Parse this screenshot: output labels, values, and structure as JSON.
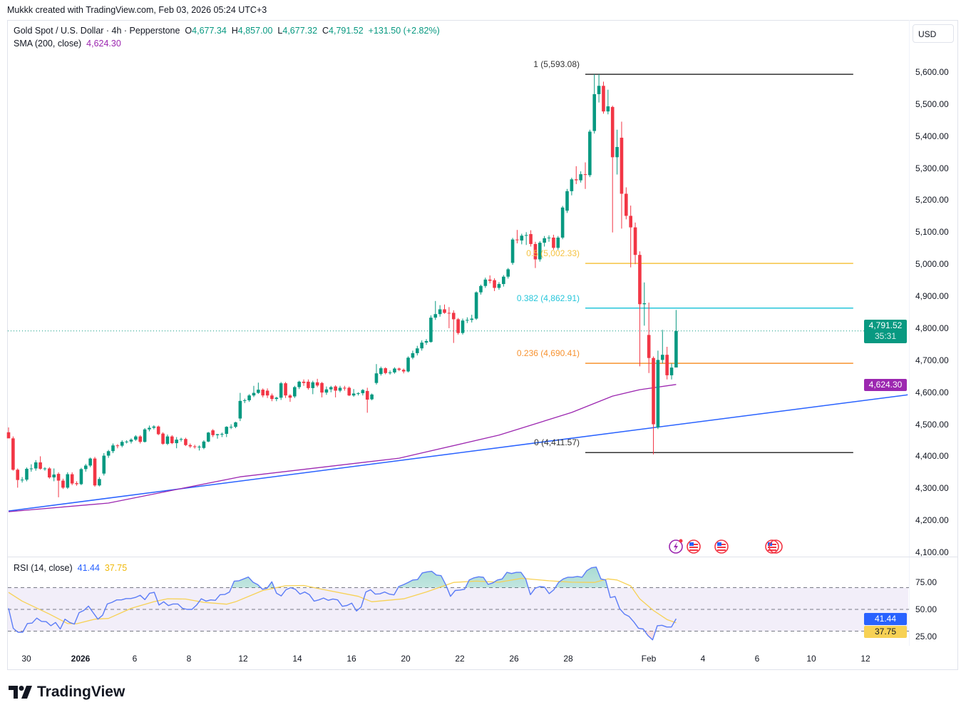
{
  "creator": "Mukkk created with TradingView.com, Feb 03, 2026 05:24 UTC+3",
  "legend": {
    "symbol": "Gold Spot / U.S. Dollar · 4h · Pepperstone",
    "o_label": "O",
    "o": "4,677.34",
    "h_label": "H",
    "h": "4,857.00",
    "l_label": "L",
    "l": "4,677.32",
    "c_label": "C",
    "c": "4,791.52",
    "change": "+131.50 (+2.82%)",
    "sma_label": "SMA (200, close)",
    "sma_value": "4,624.30"
  },
  "currency": "USD",
  "last_price": {
    "value": "4,791.52",
    "countdown": "35:31"
  },
  "sma_badge": "4,624.30",
  "rsi_legend": {
    "label": "RSI (14, close)",
    "value": "41.44",
    "ma_value": "37.75"
  },
  "rsi_badges": {
    "rsi": "41.44",
    "ma": "37.75"
  },
  "brand": "TradingView",
  "colors": {
    "up": "#089981",
    "down": "#f23645",
    "sma": "#9c27b0",
    "trend": "#2962ff",
    "rsi": "#5b7cf7",
    "rsi_ma": "#f7d154",
    "fib_1": "#333333",
    "fib_05": "#f5c342",
    "fib_0382": "#26c6da",
    "fib_0236": "#f7922f"
  },
  "events": [
    "lightning-event-icon",
    "us-flag-event-icon",
    "us-flag-event-icon",
    "us-flag-event-icon"
  ],
  "chart_data": {
    "type": "candlestick",
    "interval": "4h",
    "ylim": [
      4100,
      5650
    ],
    "price_ticks": [
      {
        "v": 5600,
        "t": "5,600.00"
      },
      {
        "v": 5500,
        "t": "5,500.00"
      },
      {
        "v": 5400,
        "t": "5,400.00"
      },
      {
        "v": 5300,
        "t": "5,300.00"
      },
      {
        "v": 5200,
        "t": "5,200.00"
      },
      {
        "v": 5100,
        "t": "5,100.00"
      },
      {
        "v": 5000,
        "t": "5,000.00"
      },
      {
        "v": 4900,
        "t": "4,900.00"
      },
      {
        "v": 4800,
        "t": "4,800.00"
      },
      {
        "v": 4700,
        "t": "4,700.00"
      },
      {
        "v": 4600,
        "t": "4,600.00"
      },
      {
        "v": 4500,
        "t": "4,500.00"
      },
      {
        "v": 4400,
        "t": "4,400.00"
      },
      {
        "v": 4300,
        "t": "4,300.00"
      },
      {
        "v": 4200,
        "t": "4,200.00"
      },
      {
        "v": 4100,
        "t": "4,100.00"
      }
    ],
    "time_ticks": [
      {
        "t": "30",
        "bold": false
      },
      {
        "t": "2026",
        "bold": true
      },
      {
        "t": "6",
        "bold": false
      },
      {
        "t": "8",
        "bold": false
      },
      {
        "t": "12",
        "bold": false
      },
      {
        "t": "14",
        "bold": false
      },
      {
        "t": "16",
        "bold": false
      },
      {
        "t": "20",
        "bold": false
      },
      {
        "t": "22",
        "bold": false
      },
      {
        "t": "26",
        "bold": false
      },
      {
        "t": "28",
        "bold": false
      },
      {
        "t": "Feb",
        "bold": false
      },
      {
        "t": "4",
        "bold": false
      },
      {
        "t": "6",
        "bold": false
      },
      {
        "t": "10",
        "bold": false
      },
      {
        "t": "12",
        "bold": false
      }
    ],
    "ohlc": [
      [
        4475,
        4490,
        4462,
        4456
      ],
      [
        4456,
        4462,
        4355,
        4358
      ],
      [
        4358,
        4362,
        4302,
        4326
      ],
      [
        4326,
        4335,
        4318,
        4327
      ],
      [
        4327,
        4365,
        4322,
        4361
      ],
      [
        4361,
        4375,
        4352,
        4362
      ],
      [
        4362,
        4388,
        4355,
        4381
      ],
      [
        4381,
        4400,
        4358,
        4361
      ],
      [
        4361,
        4366,
        4355,
        4362
      ],
      [
        4362,
        4366,
        4330,
        4334
      ],
      [
        4334,
        4362,
        4322,
        4343
      ],
      [
        4345,
        4350,
        4272,
        4324
      ],
      [
        4324,
        4330,
        4298,
        4302
      ],
      [
        4302,
        4350,
        4298,
        4344
      ],
      [
        4344,
        4350,
        4310,
        4315
      ],
      [
        4316,
        4322,
        4308,
        4313
      ],
      [
        4313,
        4364,
        4310,
        4360
      ],
      [
        4360,
        4376,
        4352,
        4371
      ],
      [
        4371,
        4396,
        4366,
        4393
      ],
      [
        4393,
        4398,
        4305,
        4309
      ],
      [
        4309,
        4335,
        4306,
        4329
      ],
      [
        4346,
        4410,
        4340,
        4402
      ],
      [
        4402,
        4420,
        4395,
        4416
      ],
      [
        4416,
        4440,
        4410,
        4434
      ],
      [
        4434,
        4438,
        4425,
        4433
      ],
      [
        4433,
        4450,
        4428,
        4445
      ],
      [
        4445,
        4450,
        4440,
        4446
      ],
      [
        4446,
        4456,
        4440,
        4452
      ],
      [
        4452,
        4466,
        4448,
        4462
      ],
      [
        4462,
        4466,
        4440,
        4445
      ],
      [
        4445,
        4488,
        4443,
        4484
      ],
      [
        4484,
        4496,
        4478,
        4489
      ],
      [
        4489,
        4497,
        4484,
        4493
      ],
      [
        4493,
        4496,
        4466,
        4469
      ],
      [
        4471,
        4475,
        4436,
        4439
      ],
      [
        4439,
        4468,
        4435,
        4462
      ],
      [
        4462,
        4466,
        4438,
        4441
      ],
      [
        4441,
        4460,
        4425,
        4452
      ],
      [
        4452,
        4458,
        4446,
        4454
      ],
      [
        4454,
        4458,
        4432,
        4435
      ],
      [
        4435,
        4440,
        4426,
        4431
      ],
      [
        4431,
        4436,
        4424,
        4430
      ],
      [
        4430,
        4434,
        4418,
        4430
      ],
      [
        4426,
        4450,
        4422,
        4446
      ],
      [
        4446,
        4476,
        4444,
        4474
      ],
      [
        4481,
        4485,
        4460,
        4466
      ],
      [
        4466,
        4470,
        4455,
        4469
      ],
      [
        4469,
        4474,
        4460,
        4470
      ],
      [
        4470,
        4494,
        4460,
        4492
      ],
      [
        4492,
        4500,
        4485,
        4492
      ],
      [
        4492,
        4508,
        4488,
        4506
      ],
      [
        4518,
        4598,
        4510,
        4573
      ],
      [
        4573,
        4580,
        4566,
        4575
      ],
      [
        4575,
        4594,
        4570,
        4590
      ],
      [
        4590,
        4620,
        4585,
        4598
      ],
      [
        4598,
        4630,
        4595,
        4608
      ],
      [
        4608,
        4612,
        4584,
        4590
      ],
      [
        4605,
        4612,
        4582,
        4590
      ],
      [
        4590,
        4596,
        4572,
        4579
      ],
      [
        4579,
        4586,
        4572,
        4583
      ],
      [
        4583,
        4632,
        4576,
        4628
      ],
      [
        4628,
        4632,
        4582,
        4590
      ],
      [
        4590,
        4594,
        4570,
        4583
      ],
      [
        4587,
        4620,
        4582,
        4616
      ],
      [
        4616,
        4636,
        4610,
        4633
      ],
      [
        4633,
        4640,
        4620,
        4629
      ],
      [
        4633,
        4640,
        4608,
        4613
      ],
      [
        4613,
        4636,
        4594,
        4631
      ],
      [
        4631,
        4642,
        4616,
        4621
      ],
      [
        4629,
        4632,
        4584,
        4599
      ],
      [
        4599,
        4618,
        4592,
        4609
      ],
      [
        4609,
        4620,
        4600,
        4616
      ],
      [
        4618,
        4622,
        4584,
        4605
      ],
      [
        4605,
        4620,
        4600,
        4614
      ],
      [
        4614,
        4620,
        4605,
        4612
      ],
      [
        4614,
        4618,
        4588,
        4590
      ],
      [
        4590,
        4610,
        4586,
        4596
      ],
      [
        4596,
        4600,
        4590,
        4597
      ],
      [
        4597,
        4610,
        4590,
        4607
      ],
      [
        4604,
        4614,
        4536,
        4577
      ],
      [
        4578,
        4596,
        4575,
        4593
      ],
      [
        4629,
        4688,
        4624,
        4659
      ],
      [
        4657,
        4680,
        4652,
        4675
      ],
      [
        4675,
        4678,
        4656,
        4660
      ],
      [
        4660,
        4668,
        4655,
        4662
      ],
      [
        4662,
        4678,
        4658,
        4674
      ],
      [
        4674,
        4677,
        4666,
        4670
      ],
      [
        4670,
        4674,
        4659,
        4665
      ],
      [
        4665,
        4712,
        4662,
        4708
      ],
      [
        4708,
        4730,
        4703,
        4722
      ],
      [
        4722,
        4745,
        4715,
        4737
      ],
      [
        4737,
        4762,
        4730,
        4755
      ],
      [
        4755,
        4766,
        4748,
        4760
      ],
      [
        4757,
        4840,
        4755,
        4833
      ],
      [
        4833,
        4885,
        4826,
        4844
      ],
      [
        4844,
        4872,
        4836,
        4859
      ],
      [
        4859,
        4874,
        4845,
        4848
      ],
      [
        4848,
        4866,
        4800,
        4847
      ],
      [
        4848,
        4856,
        4754,
        4828
      ],
      [
        4828,
        4832,
        4780,
        4785
      ],
      [
        4785,
        4830,
        4780,
        4824
      ],
      [
        4824,
        4834,
        4816,
        4826
      ],
      [
        4826,
        4842,
        4818,
        4830
      ],
      [
        4830,
        4915,
        4826,
        4912
      ],
      [
        4912,
        4936,
        4905,
        4932
      ],
      [
        4932,
        4958,
        4926,
        4952
      ],
      [
        4952,
        4965,
        4940,
        4948
      ],
      [
        4950,
        4956,
        4916,
        4926
      ],
      [
        4926,
        4944,
        4920,
        4938
      ],
      [
        4938,
        4966,
        4930,
        4961
      ],
      [
        4961,
        4988,
        4955,
        4984
      ],
      [
        5004,
        5082,
        4998,
        5077
      ],
      [
        5077,
        5107,
        5065,
        5075
      ],
      [
        5074,
        5095,
        5062,
        5089
      ],
      [
        5089,
        5100,
        5060,
        5091
      ],
      [
        5094,
        5106,
        5055,
        5063
      ],
      [
        5063,
        5070,
        4988,
        5015
      ],
      [
        5015,
        5072,
        5008,
        5067
      ],
      [
        5067,
        5088,
        5055,
        5081
      ],
      [
        5081,
        5090,
        5070,
        5083
      ],
      [
        5083,
        5092,
        5045,
        5051
      ],
      [
        5051,
        5088,
        5045,
        5083
      ],
      [
        5083,
        5182,
        5078,
        5177
      ],
      [
        5167,
        5235,
        5160,
        5228
      ],
      [
        5228,
        5270,
        5215,
        5265
      ],
      [
        5265,
        5306,
        5250,
        5262
      ],
      [
        5262,
        5290,
        5255,
        5281
      ],
      [
        5281,
        5318,
        5235,
        5279
      ],
      [
        5278,
        5420,
        5272,
        5414
      ],
      [
        5416,
        5593,
        5408,
        5531
      ],
      [
        5531,
        5593,
        5505,
        5557
      ],
      [
        5557,
        5570,
        5470,
        5477
      ],
      [
        5477,
        5545,
        5468,
        5493
      ],
      [
        5491,
        5495,
        5099,
        5334
      ],
      [
        5334,
        5420,
        5280,
        5366
      ],
      [
        5395,
        5445,
        5111,
        5220
      ],
      [
        5220,
        5240,
        5140,
        5151
      ],
      [
        5151,
        5183,
        4990,
        5115
      ],
      [
        5115,
        5130,
        5000,
        5029
      ],
      [
        5029,
        5040,
        4681,
        4875
      ],
      [
        4875,
        4943,
        4808,
        4878
      ],
      [
        4779,
        4880,
        4660,
        4707
      ],
      [
        4707,
        4712,
        4406,
        4500
      ],
      [
        4490,
        4730,
        4485,
        4701
      ],
      [
        4701,
        4795,
        4690,
        4717
      ],
      [
        4717,
        4742,
        4640,
        4653
      ],
      [
        4653,
        4690,
        4640,
        4677
      ],
      [
        4677.34,
        4857,
        4677.32,
        4791.52
      ]
    ],
    "sma200": [
      [
        0,
        4227
      ],
      [
        22,
        4254
      ],
      [
        51,
        4336
      ],
      [
        86,
        4394
      ],
      [
        108,
        4466
      ],
      [
        124,
        4537
      ],
      [
        133,
        4588
      ],
      [
        139,
        4608
      ],
      [
        147,
        4624.3
      ]
    ],
    "trendline": [
      [
        0,
        4229
      ],
      [
        198,
        4592
      ]
    ],
    "fib_levels": [
      {
        "ratio": "1",
        "price": 5593.08,
        "label": "1 (5,593.08)",
        "color": "#333333"
      },
      {
        "ratio": "0.5",
        "price": 5002.33,
        "label": "0.5 (5,002.33)",
        "color": "#f5c342"
      },
      {
        "ratio": "0.382",
        "price": 4862.91,
        "label": "0.382 (4,862.91)",
        "color": "#26c6da"
      },
      {
        "ratio": "0.236",
        "price": 4690.41,
        "label": "0.236 (4,690.41)",
        "color": "#f7922f"
      },
      {
        "ratio": "0",
        "price": 4411.57,
        "label": "0 (4,411.57)",
        "color": "#333333"
      }
    ],
    "fib_range_bars": [
      127,
      186
    ],
    "rsi": {
      "period": 14,
      "ticks": [
        {
          "v": 75,
          "t": "75.00"
        },
        {
          "v": 50,
          "t": "50.00"
        },
        {
          "v": 25,
          "t": "25.00"
        }
      ],
      "bands": [
        30,
        50,
        70
      ],
      "values": [
        51,
        32.6,
        29,
        29,
        37,
        37.4,
        42,
        39,
        38.7,
        35,
        38,
        32,
        41,
        38,
        36.5,
        47,
        49,
        53,
        47,
        41,
        44.6,
        55,
        56.5,
        58.7,
        58.7,
        60,
        60,
        61,
        63,
        59,
        64.8,
        65.7,
        54,
        57,
        53.5,
        55,
        55,
        51,
        50,
        50,
        54,
        59.8,
        57.6,
        58.7,
        58.3,
        63.5,
        63.7,
        66,
        76,
        76.3,
        78,
        79.8,
        75,
        72.8,
        68.5,
        69.5,
        75.4,
        64.8,
        62.4,
        68,
        70,
        68.5,
        64,
        66,
        63.5,
        57.6,
        58.7,
        60.4,
        58.3,
        59.6,
        58.7,
        52.8,
        53.6,
        55.8,
        48.5,
        52.2,
        66,
        68,
        64,
        64.3,
        66,
        64,
        63.3,
        71,
        72.7,
        74.8,
        77,
        77.4,
        83.5,
        84.5,
        85,
        81.6,
        81,
        72.7,
        62,
        67.4,
        67.8,
        68.5,
        77,
        79,
        80,
        79.5,
        73,
        74.3,
        77,
        78,
        84,
        83,
        84,
        84,
        78,
        63.6,
        69.4,
        71,
        70.5,
        64.5,
        68,
        74.8,
        78,
        79.6,
        79.6,
        80.3,
        79.6,
        85.6,
        88.2,
        88.9,
        78,
        77,
        60.8,
        61.9,
        50.6,
        45.7,
        43.5,
        38.6,
        32.7,
        32,
        26,
        22,
        35,
        35.4,
        33.8,
        33.8,
        41.44
      ],
      "ma": [
        [
          0,
          65.6
        ],
        [
          3,
          57.6
        ],
        [
          9,
          45.7
        ],
        [
          13,
          37
        ],
        [
          15,
          36.8
        ],
        [
          19,
          41
        ],
        [
          22,
          41.7
        ],
        [
          27,
          51
        ],
        [
          32,
          57
        ],
        [
          35,
          59.8
        ],
        [
          39,
          59.5
        ],
        [
          43,
          56.5
        ],
        [
          48,
          54.8
        ],
        [
          50,
          57
        ],
        [
          56,
          67.4
        ],
        [
          61,
          71.7
        ],
        [
          65,
          72
        ],
        [
          69,
          68.5
        ],
        [
          77,
          62
        ],
        [
          80,
          57
        ],
        [
          87,
          59.7
        ],
        [
          92,
          66
        ],
        [
          98,
          74.8
        ],
        [
          103,
          76
        ],
        [
          108,
          75
        ],
        [
          113,
          78.5
        ],
        [
          119,
          76.3
        ],
        [
          124,
          75
        ],
        [
          129,
          74.8
        ],
        [
          132,
          78
        ],
        [
          134,
          77
        ],
        [
          137,
          71.6
        ],
        [
          139,
          59.7
        ],
        [
          142,
          49
        ],
        [
          145,
          40.7
        ],
        [
          147,
          37.75
        ]
      ]
    }
  }
}
